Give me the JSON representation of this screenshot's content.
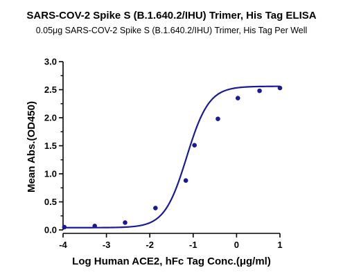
{
  "chart_data": {
    "type": "scatter",
    "title": "SARS-COV-2 Spike S (B.1.640.2/IHU) Trimer, His Tag ELISA",
    "subtitle": "0.05μg SARS-COV-2 Spike S (B.1.640.2/IHU) Trimer, His Tag Per Well",
    "xlabel": "Log Human ACE2, hFc Tag Conc.(μg/ml)",
    "ylabel": "Mean Abs.(OD450)",
    "xlim": [
      -4,
      1
    ],
    "ylim": [
      0,
      3.0
    ],
    "xticks": [
      "-4",
      "-3",
      "-2",
      "-1",
      "0",
      "1"
    ],
    "yticks": [
      "0.0",
      "0.5",
      "1.0",
      "1.5",
      "2.0",
      "2.5",
      "3.0"
    ],
    "grid": false,
    "legend": "none",
    "series": [
      {
        "x": [
          -3.97,
          -3.27,
          -2.57,
          -1.87,
          -1.17,
          -0.97,
          -0.43,
          0.03,
          0.53,
          1.0
        ],
        "y": [
          0.05,
          0.07,
          0.13,
          0.39,
          0.88,
          1.51,
          1.98,
          2.35,
          2.48,
          2.53
        ],
        "fit": "four-parameter logistic"
      }
    ],
    "colors": {
      "series": "#1a1a99",
      "axis": "#000000"
    }
  }
}
